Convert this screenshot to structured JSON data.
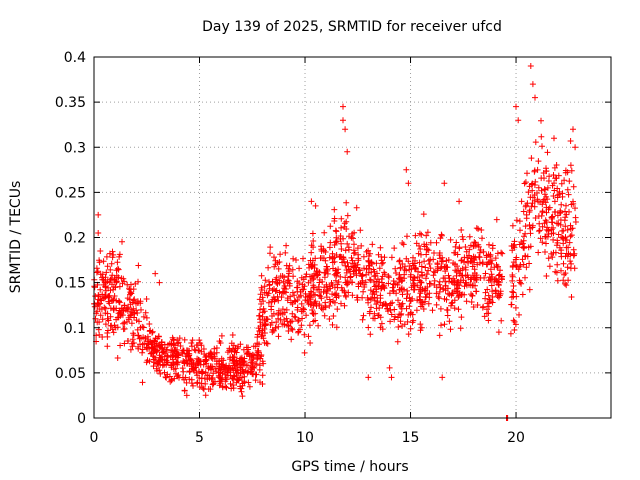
{
  "chart_data": {
    "type": "scatter",
    "title": "Day 139 of 2025, SRMTID for receiver ufcd",
    "xlabel": "GPS time / hours",
    "ylabel": "SRMTID / TECUs",
    "xlim": [
      0,
      24.5
    ],
    "ylim": [
      0,
      0.4
    ],
    "grid": true,
    "legend": "none",
    "marker": "plus",
    "color": "#ff0000",
    "x_ticks": [
      0,
      5,
      10,
      15,
      20
    ],
    "x_tick_labels": [
      "0",
      "5",
      "10",
      "15",
      "20"
    ],
    "y_ticks": [
      0,
      0.05,
      0.1,
      0.15,
      0.2,
      0.25,
      0.3,
      0.35,
      0.4
    ],
    "y_tick_labels": [
      "0",
      "0.05",
      "0.1",
      "0.15",
      "0.2",
      "0.25",
      "0.3",
      "0.35",
      "0.4"
    ],
    "trend_profile": {
      "x": [
        0,
        1,
        2,
        3,
        4,
        5,
        6,
        7,
        7.7,
        8.2,
        9,
        10,
        11,
        12,
        13,
        14,
        15,
        16,
        17,
        18,
        19,
        19.8,
        20.5,
        21,
        22,
        22.8
      ],
      "y": [
        0.13,
        0.13,
        0.11,
        0.07,
        0.065,
        0.06,
        0.055,
        0.055,
        0.065,
        0.13,
        0.14,
        0.13,
        0.15,
        0.18,
        0.15,
        0.13,
        0.15,
        0.16,
        0.15,
        0.17,
        0.15,
        0.15,
        0.22,
        0.25,
        0.22,
        0.2
      ]
    },
    "spread": 0.035,
    "n_points": 2100,
    "outliers": {
      "x": [
        11.8,
        11.8,
        11.9,
        12.0,
        14.1,
        14.8,
        14.9,
        16.5,
        20.0,
        20.1,
        20.5,
        20.7,
        20.8,
        20.9,
        22.7,
        22.8,
        22.6,
        21.8,
        0.2,
        0.2,
        0.3,
        2.9,
        3.1,
        4.3,
        4.4,
        10.3,
        10.5,
        17.3,
        13.0,
        16.6
      ],
      "y": [
        0.345,
        0.33,
        0.32,
        0.295,
        0.045,
        0.275,
        0.26,
        0.045,
        0.345,
        0.33,
        0.225,
        0.39,
        0.37,
        0.355,
        0.32,
        0.3,
        0.28,
        0.31,
        0.205,
        0.225,
        0.185,
        0.16,
        0.15,
        0.03,
        0.025,
        0.24,
        0.235,
        0.24,
        0.045,
        0.26
      ]
    },
    "zero_points": {
      "x": [
        19.55,
        19.58,
        19.6
      ],
      "y": [
        0.0,
        0.0,
        0.0
      ]
    }
  }
}
